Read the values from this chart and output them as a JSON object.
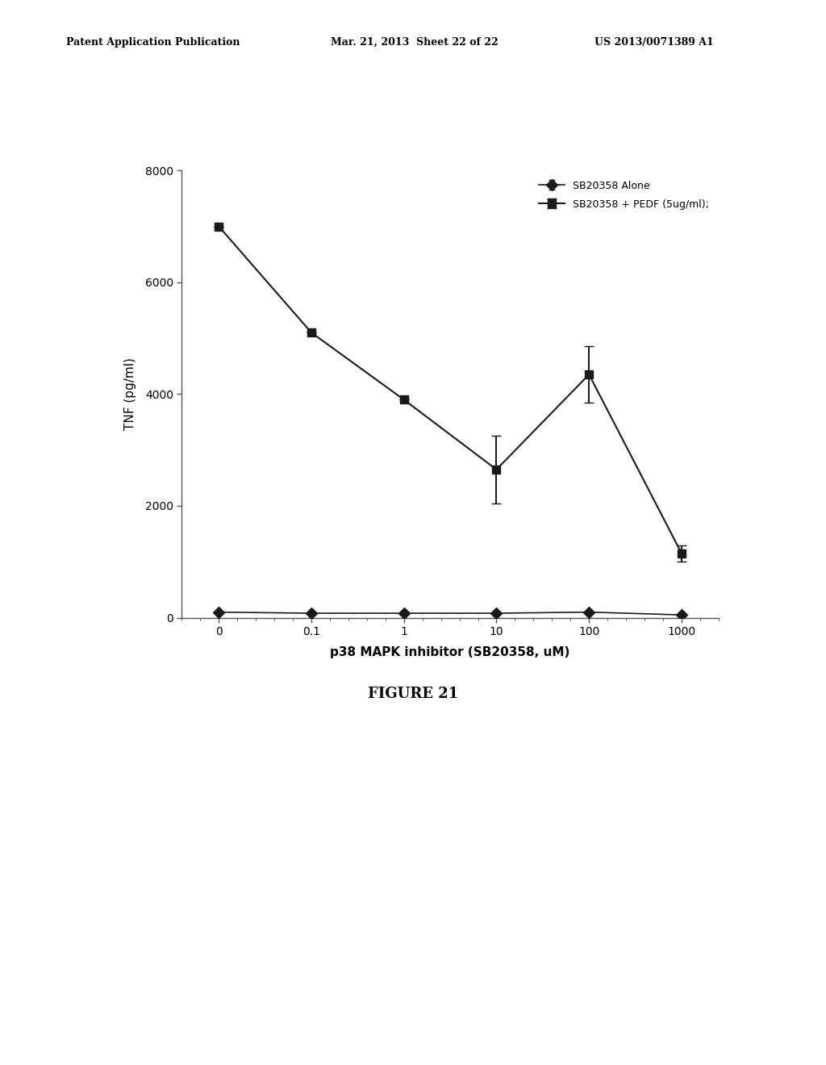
{
  "header_left": "Patent Application Publication",
  "header_mid": "Mar. 21, 2013  Sheet 22 of 22",
  "header_right": "US 2013/0071389 A1",
  "figure_label": "FIGURE 21",
  "xlabel": "p38 MAPK inhibitor (SB20358, uM)",
  "ylabel": "TNF (pg/ml)",
  "x_tick_labels": [
    "0",
    "0.1",
    "1",
    "10",
    "100",
    "1000"
  ],
  "x_positions": [
    0,
    1,
    2,
    3,
    4,
    5
  ],
  "ylim": [
    0,
    8000
  ],
  "yticks": [
    0,
    2000,
    4000,
    6000,
    8000
  ],
  "series1_label": "SB20358 Alone",
  "series1_y": [
    100,
    80,
    80,
    80,
    100,
    50
  ],
  "series1_yerr": [
    0,
    0,
    0,
    0,
    0,
    0
  ],
  "series1_color": "#1a1a1a",
  "series1_marker": "D",
  "series2_label": "SB20358 + PEDF (5ug/ml);",
  "series2_y": [
    7000,
    5100,
    3900,
    2650,
    4350,
    1150
  ],
  "series2_yerr": [
    0,
    0,
    0,
    600,
    500,
    150
  ],
  "series2_color": "#1a1a1a",
  "series2_marker": "s",
  "line_color": "#1a1a1a",
  "background_color": "#ffffff"
}
